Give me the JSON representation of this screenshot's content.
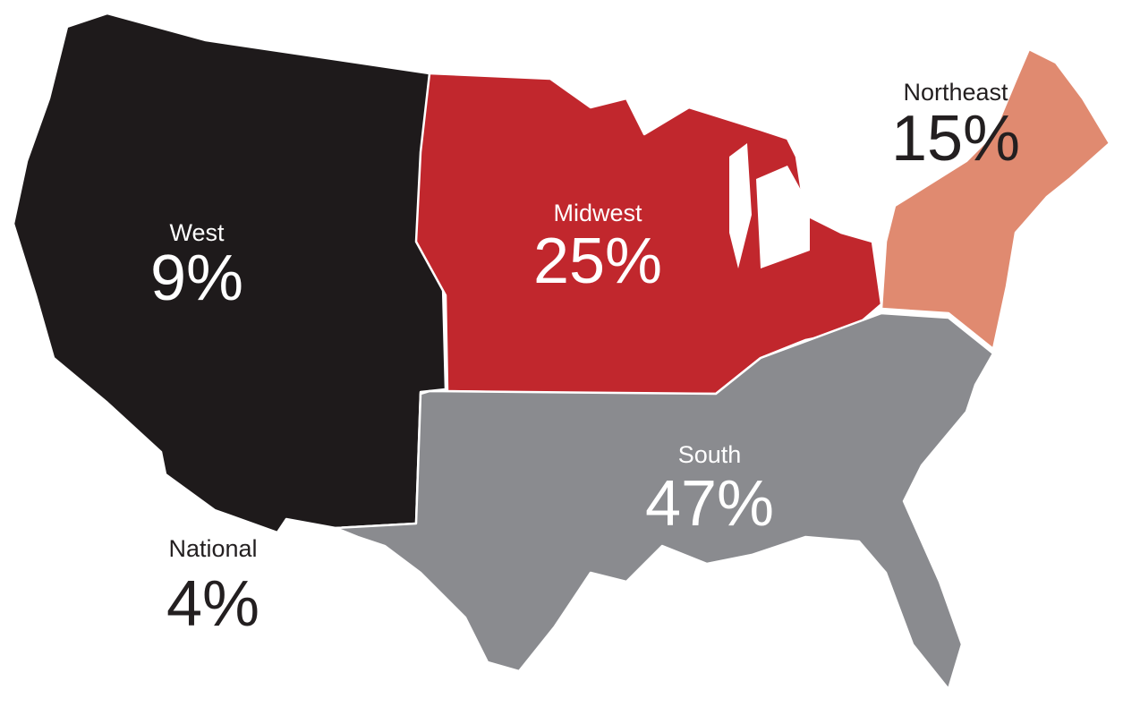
{
  "regions": [
    {
      "name": "West",
      "share": "9%"
    },
    {
      "name": "Midwest",
      "share": "25%"
    },
    {
      "name": "Northeast",
      "share": "15%"
    },
    {
      "name": "South",
      "share": "47%"
    },
    {
      "name": "National",
      "share": "4%"
    }
  ]
}
